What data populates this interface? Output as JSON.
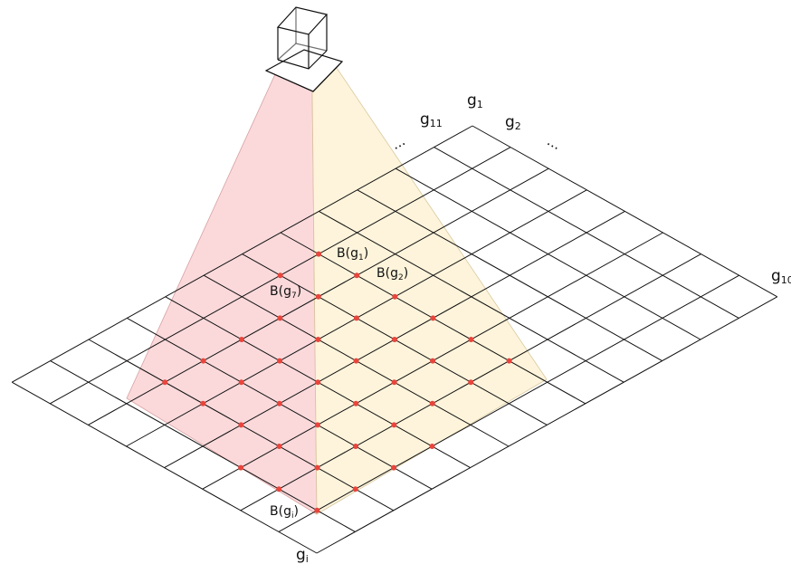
{
  "labels": {
    "corner_bottom": {
      "main": "g",
      "sub": "i"
    },
    "corner_top": {
      "main": "g",
      "sub": "1"
    },
    "corner_right": {
      "main": "g",
      "sub": "10"
    },
    "edge_left": {
      "main": "g",
      "sub": "11"
    },
    "edge_right": {
      "main": "g",
      "sub": "2"
    },
    "ellipsis": "..."
  },
  "annotations": {
    "b_g1": {
      "main": "B(g",
      "sub": "1",
      "close": ")"
    },
    "b_g2": {
      "main": "B(g",
      "sub": "2",
      "close": ")"
    },
    "b_g7": {
      "main": "B(g",
      "sub": "7",
      "close": ")"
    },
    "b_gi": {
      "main": "B(g",
      "sub": "i",
      "close": ")"
    }
  },
  "colors": {
    "left_face": "#f9c9cc",
    "right_face": "#fdf0cc",
    "grid_line": "#111111",
    "sample_point": "#e8453c"
  }
}
